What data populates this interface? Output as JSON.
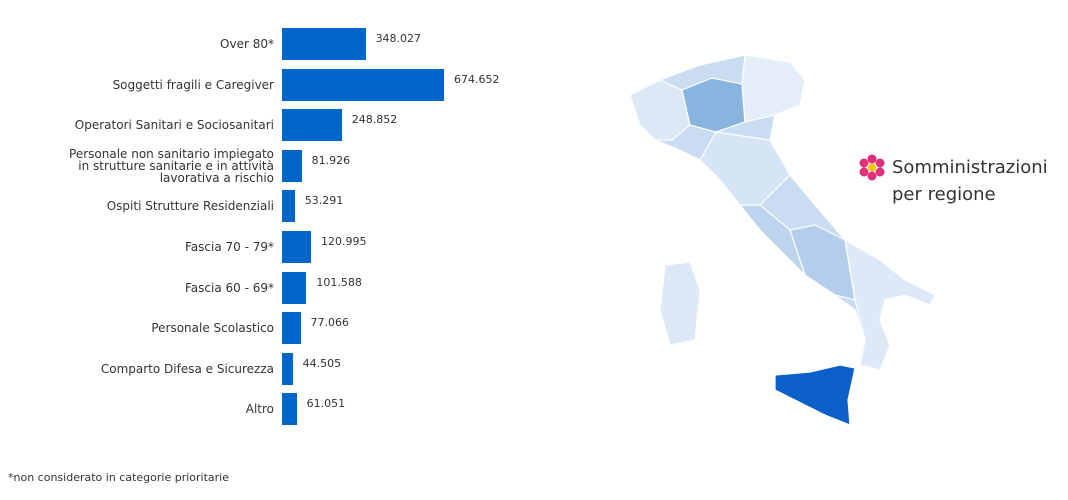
{
  "chart_data": {
    "type": "bar",
    "orientation": "horizontal",
    "categories": [
      "Over 80*",
      "Soggetti fragili e Caregiver",
      "Operatori Sanitari e Sociosanitari",
      "Personale non sanitario impiegato in strutture sanitarie e in attività lavorativa a rischio",
      "Ospiti Strutture Residenziali",
      "Fascia 70 - 79*",
      "Fascia 60 - 69*",
      "Personale Scolastico",
      "Comparto Difesa e Sicurezza",
      "Altro"
    ],
    "values": [
      348027,
      674652,
      248852,
      81926,
      53291,
      120995,
      101588,
      77066,
      44505,
      61051
    ],
    "value_labels": [
      "348.027",
      "674.652",
      "248.852",
      "81.926",
      "53.291",
      "120.995",
      "101.588",
      "77.066",
      "44.505",
      "61.051"
    ],
    "color": "#0066cc"
  },
  "map": {
    "title": "Somministrazioni per regione"
  },
  "footnote": "*non considerato in categorie prioritarie"
}
